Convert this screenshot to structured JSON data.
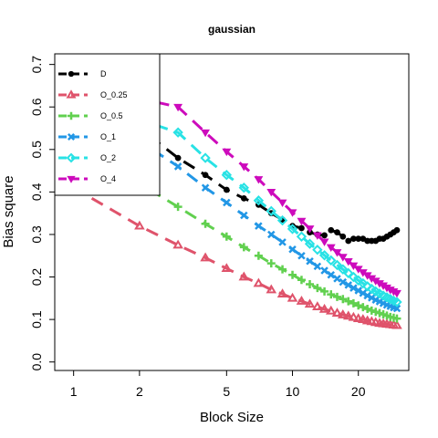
{
  "chart_data": {
    "type": "line",
    "title": "gaussian",
    "xlabel": "Block Size",
    "ylabel": "Bias square",
    "x_scale": "log",
    "xlim": [
      0.82,
      34
    ],
    "ylim": [
      -0.02,
      0.725
    ],
    "x_ticks": [
      1,
      2,
      5,
      10,
      20
    ],
    "x_tick_labels": [
      "1",
      "2",
      "5",
      "10",
      "20"
    ],
    "y_ticks": [
      0.0,
      0.1,
      0.2,
      0.3,
      0.4,
      0.5,
      0.6,
      0.7
    ],
    "y_tick_labels": [
      "0.0",
      "0.1",
      "0.2",
      "0.3",
      "0.4",
      "0.5",
      "0.6",
      "0.7"
    ],
    "grid": false,
    "legend_position": "top-left",
    "x": [
      1,
      2,
      3,
      4,
      5,
      6,
      7,
      8,
      9,
      10,
      11,
      12,
      13,
      14,
      15,
      16,
      17,
      18,
      19,
      20,
      21,
      22,
      23,
      24,
      25,
      26,
      27,
      28,
      29,
      30
    ],
    "series": [
      {
        "name": "D",
        "color": "#000000",
        "marker": "filled-circle",
        "values": [
          0.61,
          0.55,
          0.48,
          0.44,
          0.405,
          0.385,
          0.37,
          0.35,
          0.335,
          0.32,
          0.315,
          0.305,
          0.3,
          0.298,
          0.31,
          0.305,
          0.295,
          0.285,
          0.29,
          0.29,
          0.29,
          0.285,
          0.285,
          0.285,
          0.29,
          0.29,
          0.295,
          0.3,
          0.305,
          0.31
        ]
      },
      {
        "name": "O_0.25",
        "color": "#DF536B",
        "marker": "triangle",
        "values": [
          0.41,
          0.32,
          0.275,
          0.245,
          0.22,
          0.2,
          0.185,
          0.17,
          0.16,
          0.15,
          0.143,
          0.136,
          0.13,
          0.124,
          0.12,
          0.115,
          0.111,
          0.108,
          0.105,
          0.102,
          0.1,
          0.097,
          0.095,
          0.093,
          0.091,
          0.09,
          0.089,
          0.088,
          0.087,
          0.086
        ]
      },
      {
        "name": "O_0.5",
        "color": "#61D04F",
        "marker": "plus",
        "values": [
          0.49,
          0.42,
          0.365,
          0.325,
          0.295,
          0.27,
          0.25,
          0.232,
          0.218,
          0.205,
          0.193,
          0.183,
          0.174,
          0.166,
          0.159,
          0.153,
          0.148,
          0.143,
          0.138,
          0.133,
          0.129,
          0.125,
          0.121,
          0.118,
          0.115,
          0.112,
          0.109,
          0.106,
          0.104,
          0.102
        ]
      },
      {
        "name": "O_1",
        "color": "#2297E6",
        "marker": "cross",
        "values": [
          0.56,
          0.52,
          0.46,
          0.41,
          0.375,
          0.345,
          0.32,
          0.3,
          0.282,
          0.265,
          0.25,
          0.237,
          0.225,
          0.215,
          0.205,
          0.196,
          0.188,
          0.181,
          0.174,
          0.168,
          0.162,
          0.156,
          0.151,
          0.146,
          0.142,
          0.138,
          0.134,
          0.131,
          0.128,
          0.126
        ]
      },
      {
        "name": "O_2",
        "color": "#28E2E5",
        "marker": "diamond",
        "values": [
          0.6,
          0.57,
          0.54,
          0.48,
          0.44,
          0.41,
          0.38,
          0.355,
          0.333,
          0.313,
          0.295,
          0.278,
          0.264,
          0.251,
          0.239,
          0.228,
          0.218,
          0.209,
          0.2,
          0.192,
          0.185,
          0.178,
          0.172,
          0.166,
          0.161,
          0.156,
          0.152,
          0.148,
          0.144,
          0.141
        ]
      },
      {
        "name": "O_4",
        "color": "#CD0BBC",
        "marker": "filled-triangle-down",
        "values": [
          0.64,
          0.62,
          0.6,
          0.54,
          0.495,
          0.46,
          0.43,
          0.4,
          0.375,
          0.352,
          0.332,
          0.314,
          0.298,
          0.283,
          0.27,
          0.258,
          0.247,
          0.237,
          0.227,
          0.219,
          0.211,
          0.204,
          0.197,
          0.191,
          0.185,
          0.18,
          0.175,
          0.17,
          0.166,
          0.162
        ]
      }
    ]
  }
}
